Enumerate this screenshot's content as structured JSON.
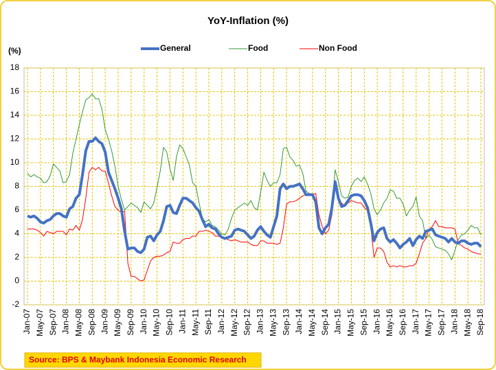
{
  "chart_data": {
    "type": "line",
    "title": "YoY-Inflation (%)",
    "y_axis_label": "(%)",
    "source": "Source: BPS & Maybank Indonesia Economic Research",
    "categories": [
      "Jan-07",
      null,
      null,
      null,
      "May-07",
      null,
      null,
      null,
      "Sep-07",
      null,
      null,
      null,
      "Jan-08",
      null,
      null,
      null,
      "May-08",
      null,
      null,
      null,
      "Sep-08",
      null,
      null,
      null,
      "Jan-09",
      null,
      null,
      null,
      "May-09",
      null,
      null,
      null,
      "Sep-09",
      null,
      null,
      null,
      "Jan-10",
      null,
      null,
      null,
      "May-10",
      null,
      null,
      null,
      "Sep-10",
      null,
      null,
      null,
      "Jan-11",
      null,
      null,
      null,
      "May-11",
      null,
      null,
      null,
      "Sep-11",
      null,
      null,
      null,
      "Jan-12",
      null,
      null,
      null,
      "May-12",
      null,
      null,
      null,
      "Sep-12",
      null,
      null,
      null,
      "Jan-13",
      null,
      null,
      null,
      "May-13",
      null,
      null,
      null,
      "Sep-13",
      null,
      null,
      null,
      "Jan-14",
      null,
      null,
      null,
      "May-14",
      null,
      null,
      null,
      "Sep-14",
      null,
      null,
      null,
      "Jan-15",
      null,
      null,
      null,
      "May-15",
      null,
      null,
      null,
      "Sep-15",
      null,
      null,
      null,
      "Jan-16",
      null,
      null,
      null,
      "May-16",
      null,
      null,
      null,
      "Sep-16",
      null,
      null,
      null,
      "Jan-17",
      null,
      null,
      null,
      "May-17",
      null,
      null,
      null,
      "Sep-17",
      null,
      null,
      null,
      "Jan-18",
      null,
      null,
      null,
      "May-18",
      null,
      null,
      null,
      "Sep-18"
    ],
    "series": [
      {
        "name": "General",
        "color": "#4472c4",
        "width": 4,
        "values": [
          5.5,
          5.4,
          5.5,
          5.3,
          5.0,
          4.9,
          5.1,
          5.2,
          5.5,
          5.7,
          5.7,
          5.5,
          5.4,
          6.1,
          6.3,
          7.0,
          7.3,
          9.0,
          11.0,
          11.8,
          11.8,
          12.1,
          11.8,
          11.6,
          10.9,
          9.2,
          8.5,
          7.8,
          7.0,
          6.1,
          4.2,
          2.7,
          2.8,
          2.8,
          2.5,
          2.4,
          2.7,
          3.7,
          3.8,
          3.4,
          3.9,
          4.2,
          5.1,
          6.3,
          6.4,
          5.8,
          5.7,
          6.4,
          7.0,
          7.0,
          6.8,
          6.6,
          6.2,
          5.9,
          5.2,
          4.6,
          4.8,
          4.5,
          4.4,
          4.0,
          3.7,
          3.6,
          3.7,
          3.8,
          4.3,
          4.4,
          4.3,
          4.2,
          3.9,
          3.6,
          3.8,
          4.3,
          4.6,
          4.2,
          3.9,
          3.7,
          4.6,
          5.5,
          7.8,
          8.2,
          7.8,
          8.0,
          8.0,
          8.1,
          8.2,
          7.8,
          7.3,
          7.3,
          7.3,
          6.7,
          4.5,
          4.0,
          4.5,
          4.8,
          6.2,
          8.4,
          7.0,
          6.3,
          6.4,
          6.8,
          7.2,
          7.3,
          7.3,
          7.2,
          6.8,
          6.2,
          4.9,
          3.4,
          4.1,
          4.4,
          4.5,
          3.6,
          3.3,
          3.5,
          3.2,
          2.8,
          3.1,
          3.3,
          3.6,
          3.0,
          3.5,
          3.8,
          3.6,
          4.2,
          4.3,
          4.4,
          3.9,
          3.8,
          3.7,
          3.6,
          3.3,
          3.6,
          3.3,
          3.2,
          3.4,
          3.4,
          3.2,
          3.1,
          3.2,
          3.2,
          2.9
        ]
      },
      {
        "name": "Food",
        "color": "#339933",
        "width": 1,
        "values": [
          9.1,
          8.8,
          9.0,
          8.8,
          8.7,
          8.3,
          8.4,
          8.9,
          9.9,
          9.6,
          9.3,
          8.3,
          8.4,
          9.0,
          10.8,
          12.0,
          13.2,
          14.3,
          15.3,
          15.5,
          15.8,
          15.4,
          15.4,
          14.5,
          12.8,
          12.0,
          11.0,
          9.7,
          8.0,
          6.9,
          6.0,
          6.3,
          6.6,
          6.4,
          6.2,
          5.8,
          6.7,
          6.4,
          6.1,
          6.6,
          7.9,
          9.3,
          11.3,
          10.9,
          9.5,
          8.5,
          10.5,
          11.5,
          11.2,
          10.5,
          9.8,
          8.3,
          8.0,
          6.6,
          5.3,
          5.0,
          5.2,
          4.7,
          4.6,
          4.3,
          4.0,
          3.9,
          4.4,
          5.3,
          6.0,
          6.2,
          6.4,
          6.6,
          6.4,
          6.8,
          6.2,
          6.0,
          7.5,
          9.2,
          8.5,
          8.0,
          8.3,
          8.3,
          9.0,
          11.2,
          11.3,
          10.5,
          10.2,
          9.7,
          9.8,
          9.1,
          7.6,
          7.4,
          7.2,
          6.8,
          4.5,
          4.2,
          4.4,
          5.0,
          6.3,
          9.4,
          8.4,
          7.2,
          7.0,
          7.1,
          8.0,
          8.5,
          8.7,
          8.4,
          8.8,
          8.2,
          7.4,
          6.1,
          5.6,
          6.0,
          6.6,
          7.0,
          7.7,
          7.6,
          7.0,
          7.0,
          6.5,
          5.5,
          6.0,
          6.3,
          7.1,
          5.5,
          5.1,
          3.6,
          3.9,
          3.5,
          2.9,
          2.8,
          2.7,
          2.6,
          2.3,
          1.8,
          2.6,
          3.5,
          3.9,
          4.0,
          4.3,
          4.7,
          4.5,
          4.5,
          3.9
        ]
      },
      {
        "name": "Non Food",
        "color": "#ff0000",
        "width": 1,
        "values": [
          4.4,
          4.4,
          4.4,
          4.3,
          4.1,
          3.8,
          4.2,
          4.1,
          4.0,
          4.2,
          4.2,
          4.2,
          3.9,
          4.4,
          4.3,
          4.7,
          4.3,
          5.2,
          7.0,
          9.2,
          9.6,
          9.4,
          9.6,
          9.3,
          9.3,
          8.3,
          7.2,
          6.3,
          6.0,
          5.8,
          5.9,
          1.5,
          0.4,
          0.4,
          0.2,
          0.0,
          0.1,
          0.9,
          1.7,
          2.0,
          2.1,
          2.1,
          2.2,
          2.4,
          2.5,
          3.3,
          3.2,
          3.2,
          3.5,
          3.6,
          3.6,
          3.8,
          3.8,
          4.2,
          4.2,
          4.3,
          4.2,
          4.1,
          3.8,
          3.8,
          3.7,
          3.6,
          3.5,
          3.4,
          3.5,
          3.4,
          3.3,
          3.3,
          3.3,
          3.1,
          3.0,
          3.0,
          3.4,
          3.4,
          3.2,
          3.2,
          3.2,
          3.1,
          3.2,
          4.5,
          6.5,
          6.7,
          6.7,
          6.8,
          7.0,
          7.2,
          7.3,
          7.4,
          7.3,
          7.4,
          5.6,
          4.6,
          4.0,
          4.3,
          5.6,
          8.0,
          6.8,
          6.6,
          6.3,
          6.6,
          6.8,
          6.7,
          6.6,
          6.6,
          6.2,
          6.0,
          4.6,
          2.0,
          2.8,
          2.8,
          2.5,
          1.6,
          1.2,
          1.3,
          1.2,
          1.3,
          1.2,
          1.2,
          1.3,
          1.3,
          1.5,
          2.3,
          3.2,
          3.6,
          4.4,
          4.6,
          5.1,
          4.6,
          4.6,
          4.5,
          4.5,
          4.5,
          4.4,
          3.2,
          3.0,
          2.8,
          2.7,
          2.5,
          2.4,
          2.3,
          2.3
        ]
      }
    ],
    "ylim": [
      -2,
      18
    ],
    "yticks": [
      -2,
      0,
      2,
      4,
      6,
      8,
      10,
      12,
      14,
      16,
      18
    ],
    "grid": true,
    "legend": "top"
  }
}
